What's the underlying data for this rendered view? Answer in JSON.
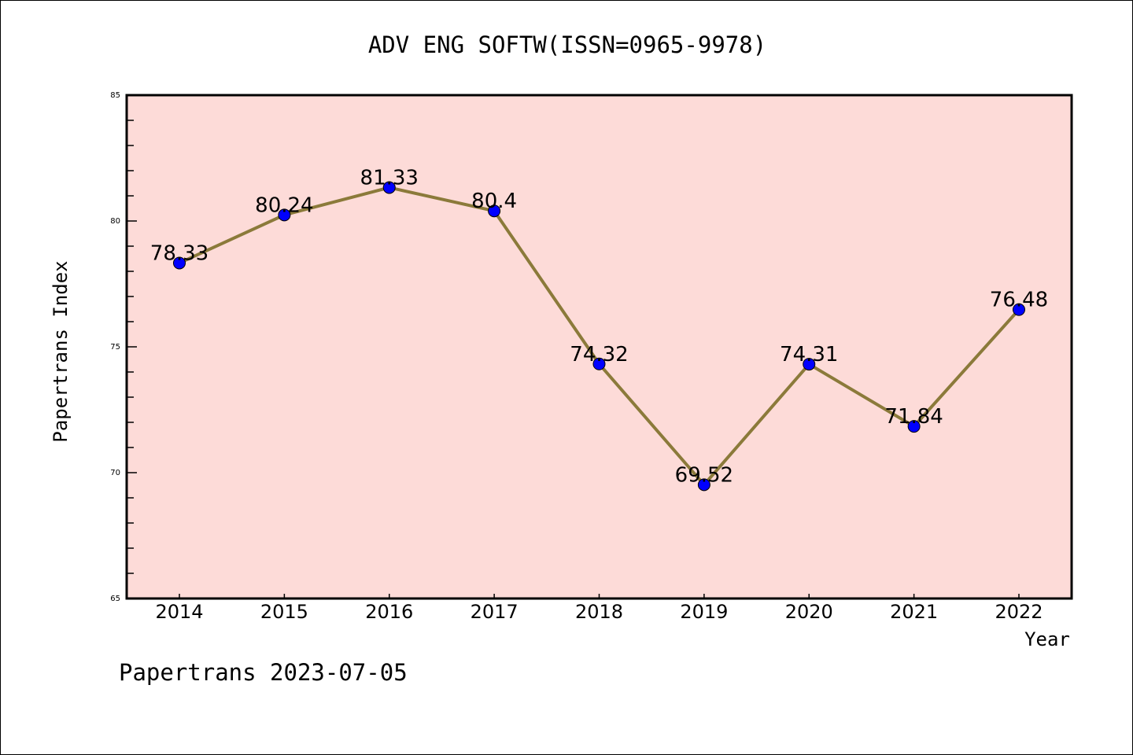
{
  "chart_data": {
    "type": "line",
    "title": "ADV ENG SOFTW(ISSN=0965-9978)",
    "xlabel": "Year",
    "ylabel": "Papertrans Index",
    "categories": [
      "2014",
      "2015",
      "2016",
      "2017",
      "2018",
      "2019",
      "2020",
      "2021",
      "2022"
    ],
    "series": [
      {
        "name": "Papertrans Index",
        "values": [
          78.33,
          80.24,
          81.33,
          80.4,
          74.32,
          69.52,
          74.31,
          71.84,
          76.48
        ]
      }
    ],
    "data_labels": [
      "78.33",
      "80.24",
      "81.33",
      "80.4",
      "74.32",
      "69.52",
      "74.31",
      "71.84",
      "76.48"
    ],
    "ylim": [
      65,
      85
    ],
    "yticks": [
      65,
      70,
      75,
      80,
      85
    ],
    "yminor_step": 1,
    "grid": false,
    "colors": {
      "background": "#fddbd8",
      "line": "#8b7a3a",
      "marker": "#0000ff",
      "axis": "#000000"
    }
  },
  "footer": "Papertrans 2023-07-05"
}
